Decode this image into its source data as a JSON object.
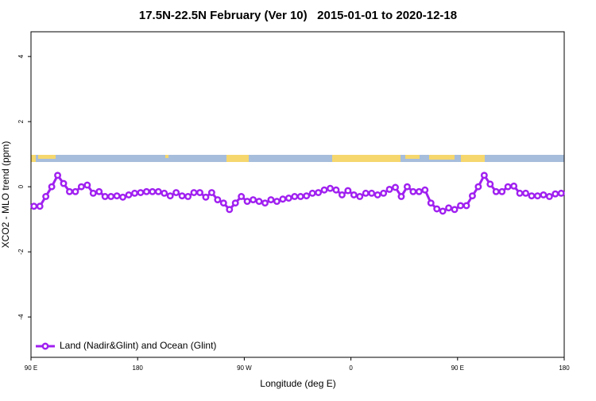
{
  "chart_data": {
    "type": "line",
    "title": "17.5N-22.5N February (Ver 10)   2015-01-01 to 2020-12-18",
    "x_label": "Longitude (deg E)",
    "y_label": "XCO2 - MLO trend (ppm)",
    "x": [
      92.5,
      97.5,
      102.5,
      107.5,
      112.5,
      117.5,
      122.5,
      127.5,
      132.5,
      137.5,
      142.5,
      147.5,
      152.5,
      157.5,
      162.5,
      167.5,
      172.5,
      177.5,
      182.5,
      187.5,
      192.5,
      197.5,
      202.5,
      207.5,
      212.5,
      217.5,
      222.5,
      227.5,
      232.5,
      237.5,
      242.5,
      247.5,
      252.5,
      257.5,
      262.5,
      267.5,
      272.5,
      277.5,
      282.5,
      287.5,
      292.5,
      297.5,
      302.5,
      307.5,
      312.5,
      317.5,
      322.5,
      327.5,
      332.5,
      337.5,
      342.5,
      347.5,
      352.5,
      357.5,
      362.5,
      367.5,
      372.5,
      377.5,
      382.5,
      387.5,
      392.5,
      397.5,
      402.5,
      407.5,
      412.5,
      417.5,
      422.5,
      427.5,
      432.5,
      437.5,
      442.5,
      447.5,
      452.5,
      457.5,
      462.5,
      467.5,
      472.5,
      477.5,
      482.5,
      487.5,
      492.5,
      497.5,
      502.5,
      507.5,
      512.5,
      517.5,
      522.5,
      527.5,
      532.5,
      537.5
    ],
    "series": [
      {
        "name": "Land (Nadir&Glint) and Ocean (Glint)",
        "color": "#a020f0",
        "values": [
          -0.6,
          -0.6,
          -0.3,
          0.0,
          0.35,
          0.1,
          -0.15,
          -0.15,
          0.0,
          0.05,
          -0.2,
          -0.15,
          -0.3,
          -0.3,
          -0.28,
          -0.32,
          -0.25,
          -0.2,
          -0.18,
          -0.15,
          -0.15,
          -0.15,
          -0.2,
          -0.28,
          -0.18,
          -0.28,
          -0.3,
          -0.18,
          -0.18,
          -0.32,
          -0.18,
          -0.4,
          -0.5,
          -0.7,
          -0.5,
          -0.3,
          -0.45,
          -0.4,
          -0.45,
          -0.5,
          -0.4,
          -0.45,
          -0.38,
          -0.35,
          -0.3,
          -0.3,
          -0.28,
          -0.2,
          -0.18,
          -0.1,
          -0.05,
          -0.1,
          -0.25,
          -0.12,
          -0.25,
          -0.3,
          -0.2,
          -0.2,
          -0.25,
          -0.2,
          -0.08,
          -0.02,
          -0.3,
          0.0,
          -0.15,
          -0.15,
          -0.1,
          -0.5,
          -0.68,
          -0.75,
          -0.65,
          -0.7,
          -0.58,
          -0.58,
          -0.28,
          0.0,
          0.35,
          0.08,
          -0.15,
          -0.15,
          0.0,
          0.02,
          -0.2,
          -0.2,
          -0.28,
          -0.28,
          -0.25,
          -0.3,
          -0.22,
          -0.2
        ]
      }
    ],
    "xlim": [
      90,
      540
    ],
    "xticks": [
      {
        "value": 90,
        "label": "90 E"
      },
      {
        "value": 180,
        "label": "180"
      },
      {
        "value": 270,
        "label": "90 W"
      },
      {
        "value": 360,
        "label": "0"
      },
      {
        "value": 450,
        "label": "90 E"
      },
      {
        "value": 540,
        "label": "180"
      }
    ],
    "ylim": [
      -5.24,
      4.76
    ],
    "yticks": [
      -4,
      -2,
      0,
      2,
      4
    ],
    "legend": "bottom-left"
  }
}
